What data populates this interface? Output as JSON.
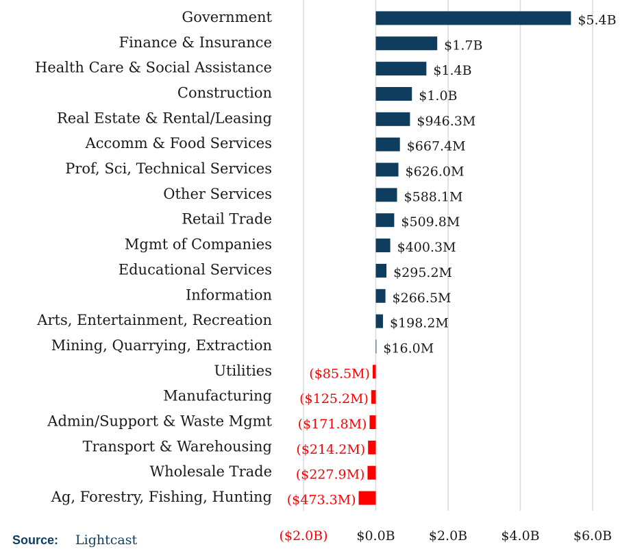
{
  "chart_data": {
    "type": "barh",
    "categories": [
      "Government",
      "Finance & Insurance",
      "Health Care & Social Assistance",
      "Construction",
      "Real Estate & Rental/Leasing",
      "Accomm & Food Services",
      "Prof, Sci, Technical Services",
      "Other Services",
      "Retail Trade",
      "Mgmt of Companies",
      "Educational Services",
      "Information",
      "Arts, Entertainment, Recreation",
      "Mining, Quarrying, Extraction",
      "Utilities",
      "Manufacturing",
      "Admin/Support & Waste Mgmt",
      "Transport & Warehousing",
      "Wholesale Trade",
      "Ag, Forestry, Fishing, Hunting"
    ],
    "values": [
      5.4,
      1.7,
      1.4,
      1.0,
      0.9463,
      0.6674,
      0.626,
      0.5881,
      0.5098,
      0.4003,
      0.2952,
      0.2665,
      0.1982,
      0.016,
      -0.0855,
      -0.1252,
      -0.1718,
      -0.2142,
      -0.2279,
      -0.4733
    ],
    "value_labels": [
      "$5.4B",
      "$1.7B",
      "$1.4B",
      "$1.0B",
      "$946.3M",
      "$667.4M",
      "$626.0M",
      "$588.1M",
      "$509.8M",
      "$400.3M",
      "$295.2M",
      "$266.5M",
      "$198.2M",
      "$16.0M",
      "($85.5M)",
      "($125.2M)",
      "($171.8M)",
      "($214.2M)",
      "($227.9M)",
      "($473.3M)"
    ],
    "positive_color": "#0e3d5e",
    "negative_color": "#ff0000",
    "xlim": [
      -2.0,
      6.6
    ],
    "xticks": [
      {
        "value": -2,
        "label": "($2.0B)"
      },
      {
        "value": 0,
        "label": "$0.0B"
      },
      {
        "value": 2,
        "label": "$2.0B"
      },
      {
        "value": 4,
        "label": "$4.0B"
      },
      {
        "value": 6,
        "label": "$6.0B"
      }
    ],
    "grid": true,
    "source_label": "Source:",
    "source": "Lightcast"
  }
}
